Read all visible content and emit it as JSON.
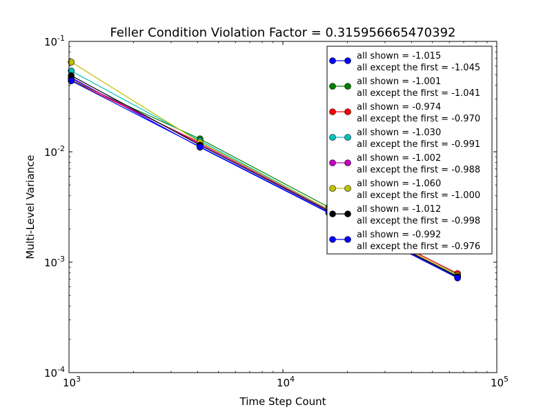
{
  "chart_data": {
    "type": "line",
    "title": "Feller Condition Violation Factor = 0.315956665470392",
    "xlabel": "Time Step Count",
    "ylabel": "Multi-Level Variance",
    "xscale": "log",
    "yscale": "log",
    "xlim": [
      1000,
      100000
    ],
    "ylim": [
      0.0001,
      0.1
    ],
    "x_ticks": [
      {
        "base": "10",
        "exp": "3",
        "value": 1000
      },
      {
        "base": "10",
        "exp": "4",
        "value": 10000
      },
      {
        "base": "10",
        "exp": "5",
        "value": 100000
      }
    ],
    "y_ticks": [
      {
        "base": "10",
        "exp": "-4",
        "value": 0.0001
      },
      {
        "base": "10",
        "exp": "-3",
        "value": 0.001
      },
      {
        "base": "10",
        "exp": "-2",
        "value": 0.01
      },
      {
        "base": "10",
        "exp": "-1",
        "value": 0.1
      }
    ],
    "grid": false,
    "legend_position": "top-right",
    "x": [
      1024,
      4096,
      16384,
      65536
    ],
    "series": [
      {
        "label_line1": "all shown = -1.015",
        "label_line2": "all except the first = -1.045",
        "color": "#0000ff",
        "values": [
          0.047,
          0.011,
          0.0028,
          0.00073
        ]
      },
      {
        "label_line1": "all shown = -1.001",
        "label_line2": "all except the first = -1.041",
        "color": "#008000",
        "values": [
          0.0445,
          0.0131,
          0.00315,
          0.00078
        ]
      },
      {
        "label_line1": "all shown = -0.974",
        "label_line2": "all except the first = -0.970",
        "color": "#ff0000",
        "values": [
          0.044,
          0.0121,
          0.003,
          0.00079
        ]
      },
      {
        "label_line1": "all shown = -1.030",
        "label_line2": "all except the first = -0.991",
        "color": "#00bfbf",
        "values": [
          0.054,
          0.0126,
          0.003,
          0.00075
        ]
      },
      {
        "label_line1": "all shown = -1.002",
        "label_line2": "all except the first = -0.988",
        "color": "#bf00bf",
        "values": [
          0.046,
          0.0118,
          0.00295,
          0.00074
        ]
      },
      {
        "label_line1": "all shown = -1.060",
        "label_line2": "all except the first = -1.000",
        "color": "#bfbf00",
        "values": [
          0.065,
          0.0122,
          0.003,
          0.00076
        ]
      },
      {
        "label_line1": "all shown = -1.012",
        "label_line2": "all except the first = -0.998",
        "color": "#000000",
        "values": [
          0.049,
          0.0115,
          0.0029,
          0.00074
        ]
      },
      {
        "label_line1": "all shown = -0.992",
        "label_line2": "all except the first = -0.976",
        "color": "#0000ff",
        "values": [
          0.044,
          0.0111,
          0.00283,
          0.00072
        ]
      }
    ]
  }
}
